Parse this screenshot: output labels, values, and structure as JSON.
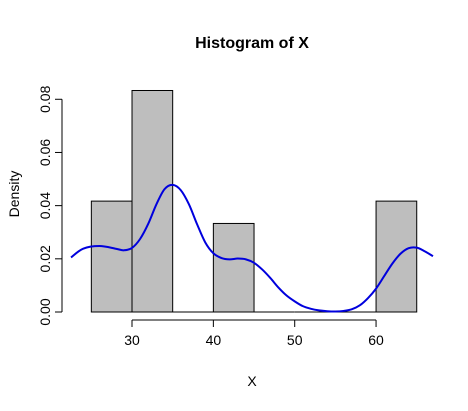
{
  "chart_data": {
    "type": "bar",
    "title": "Histogram of X",
    "xlabel": "X",
    "ylabel": "Density",
    "xlim": [
      22.5,
      67
    ],
    "ylim": [
      0,
      0.088
    ],
    "bin_edges": [
      25,
      30,
      35,
      40,
      45,
      50,
      55,
      60,
      65
    ],
    "values": [
      0.0417,
      0.0833,
      0,
      0.0333,
      0,
      0,
      0,
      0.0417
    ],
    "x_ticks": [
      30,
      40,
      50,
      60
    ],
    "y_ticks": [
      0.0,
      0.02,
      0.04,
      0.06,
      0.08
    ],
    "x_tick_labels": [
      "30",
      "40",
      "50",
      "60"
    ],
    "y_tick_labels": [
      "0.00",
      "0.02",
      "0.04",
      "0.06",
      "0.08"
    ],
    "bar_color": "#bebebe",
    "density_line": {
      "color": "#0000dd",
      "x": [
        22.5,
        24,
        26,
        28,
        29,
        30,
        31,
        32,
        33,
        34,
        35,
        36,
        37,
        38,
        39,
        40,
        41,
        42,
        43,
        44,
        45,
        46,
        47,
        48,
        49,
        50,
        51,
        52,
        53,
        54,
        55,
        56,
        57,
        58,
        59,
        60,
        61,
        62,
        63,
        64,
        65,
        66,
        67
      ],
      "y": [
        0.0205,
        0.0238,
        0.0248,
        0.0238,
        0.0232,
        0.0241,
        0.0275,
        0.0332,
        0.0405,
        0.0462,
        0.0478,
        0.0458,
        0.0405,
        0.033,
        0.0262,
        0.0221,
        0.0203,
        0.0198,
        0.0201,
        0.0198,
        0.0185,
        0.016,
        0.0128,
        0.0092,
        0.0062,
        0.004,
        0.0022,
        0.0012,
        0.0006,
        0.0003,
        0.0002,
        0.0004,
        0.001,
        0.0025,
        0.0052,
        0.0088,
        0.0135,
        0.0182,
        0.0219,
        0.024,
        0.0242,
        0.0228,
        0.021
      ]
    }
  }
}
